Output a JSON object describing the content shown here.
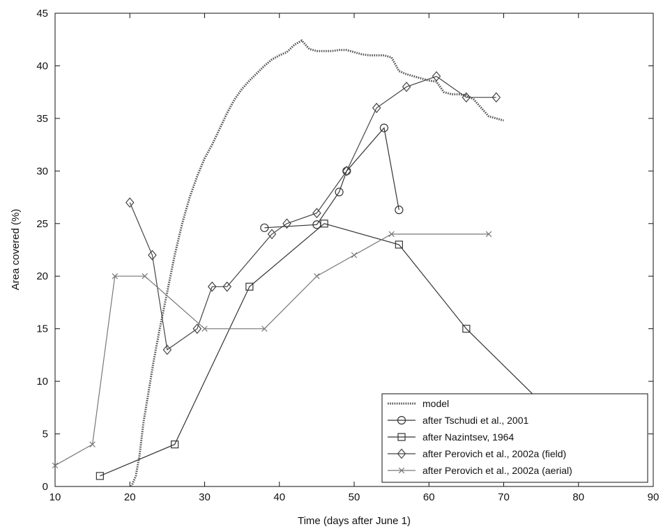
{
  "chart_data": {
    "type": "line",
    "xlabel": "Time (days after June 1)",
    "ylabel": "Area covered (%)",
    "xlim": [
      10,
      90
    ],
    "ylim": [
      0,
      45
    ],
    "xticks": [
      10,
      20,
      30,
      40,
      50,
      60,
      70,
      80,
      90
    ],
    "yticks": [
      0,
      5,
      10,
      15,
      20,
      25,
      30,
      35,
      40,
      45
    ],
    "grid": false,
    "legend_position": "bottom-right",
    "series": [
      {
        "name": "model",
        "style": "dotted",
        "marker": "none",
        "color": "#555555",
        "points": [
          [
            20.2,
            0
          ],
          [
            20.8,
            1
          ],
          [
            21.3,
            3
          ],
          [
            21.8,
            6
          ],
          [
            22.5,
            9
          ],
          [
            23.2,
            12
          ],
          [
            24,
            15
          ],
          [
            25,
            18.5
          ],
          [
            26,
            22
          ],
          [
            27,
            25
          ],
          [
            28,
            27.5
          ],
          [
            29,
            29.5
          ],
          [
            30,
            31.2
          ],
          [
            31,
            32.5
          ],
          [
            32,
            34
          ],
          [
            33,
            35.5
          ],
          [
            34,
            36.8
          ],
          [
            35,
            37.8
          ],
          [
            36,
            38.6
          ],
          [
            37,
            39.3
          ],
          [
            38,
            40
          ],
          [
            39,
            40.6
          ],
          [
            40,
            41
          ],
          [
            41,
            41.3
          ],
          [
            42,
            42
          ],
          [
            43,
            42.4
          ],
          [
            44,
            41.6
          ],
          [
            45,
            41.4
          ],
          [
            46,
            41.4
          ],
          [
            47,
            41.4
          ],
          [
            48,
            41.5
          ],
          [
            49,
            41.5
          ],
          [
            50,
            41.3
          ],
          [
            51,
            41.1
          ],
          [
            52,
            41
          ],
          [
            53,
            41
          ],
          [
            54,
            41
          ],
          [
            55,
            40.8
          ],
          [
            56,
            39.5
          ],
          [
            57,
            39.2
          ],
          [
            58,
            39
          ],
          [
            59,
            38.8
          ],
          [
            60,
            38.6
          ],
          [
            61,
            38.5
          ],
          [
            62,
            37.5
          ],
          [
            63,
            37.3
          ],
          [
            64,
            37.3
          ],
          [
            65,
            37.2
          ],
          [
            66,
            36.8
          ],
          [
            67,
            36
          ],
          [
            68,
            35.2
          ],
          [
            69,
            35
          ],
          [
            70,
            34.8
          ]
        ]
      },
      {
        "name": "after Tschudi et al., 2001",
        "style": "solid",
        "marker": "circle",
        "color": "#333333",
        "points": [
          [
            38,
            24.6
          ],
          [
            45,
            24.9
          ],
          [
            48,
            28
          ],
          [
            49,
            30
          ],
          [
            54,
            34.1
          ],
          [
            56,
            26.3
          ]
        ]
      },
      {
        "name": "after Nazintsev, 1964",
        "style": "solid",
        "marker": "square",
        "color": "#333333",
        "points": [
          [
            16,
            1
          ],
          [
            26,
            4
          ],
          [
            36,
            19
          ],
          [
            46,
            25
          ],
          [
            56,
            23
          ],
          [
            65,
            15
          ],
          [
            75,
            8
          ]
        ]
      },
      {
        "name": "after Perovich et al., 2002a (field)",
        "style": "solid",
        "marker": "diamond",
        "color": "#444444",
        "points": [
          [
            20,
            27
          ],
          [
            23,
            22
          ],
          [
            25,
            13
          ],
          [
            29,
            15
          ],
          [
            31,
            19
          ],
          [
            33,
            19
          ],
          [
            39,
            24
          ],
          [
            41,
            25
          ],
          [
            45,
            26
          ],
          [
            49,
            30
          ],
          [
            53,
            36
          ],
          [
            57,
            38
          ],
          [
            61,
            39
          ],
          [
            65,
            37
          ],
          [
            69,
            37
          ]
        ]
      },
      {
        "name": "after Perovich et al., 2002a (aerial)",
        "style": "solid",
        "marker": "x",
        "color": "#777777",
        "points": [
          [
            10,
            2
          ],
          [
            15,
            4
          ],
          [
            18,
            20
          ],
          [
            22,
            20
          ],
          [
            30,
            15
          ],
          [
            38,
            15
          ],
          [
            45,
            20
          ],
          [
            50,
            22
          ],
          [
            55,
            24
          ],
          [
            68,
            24
          ]
        ]
      }
    ]
  }
}
